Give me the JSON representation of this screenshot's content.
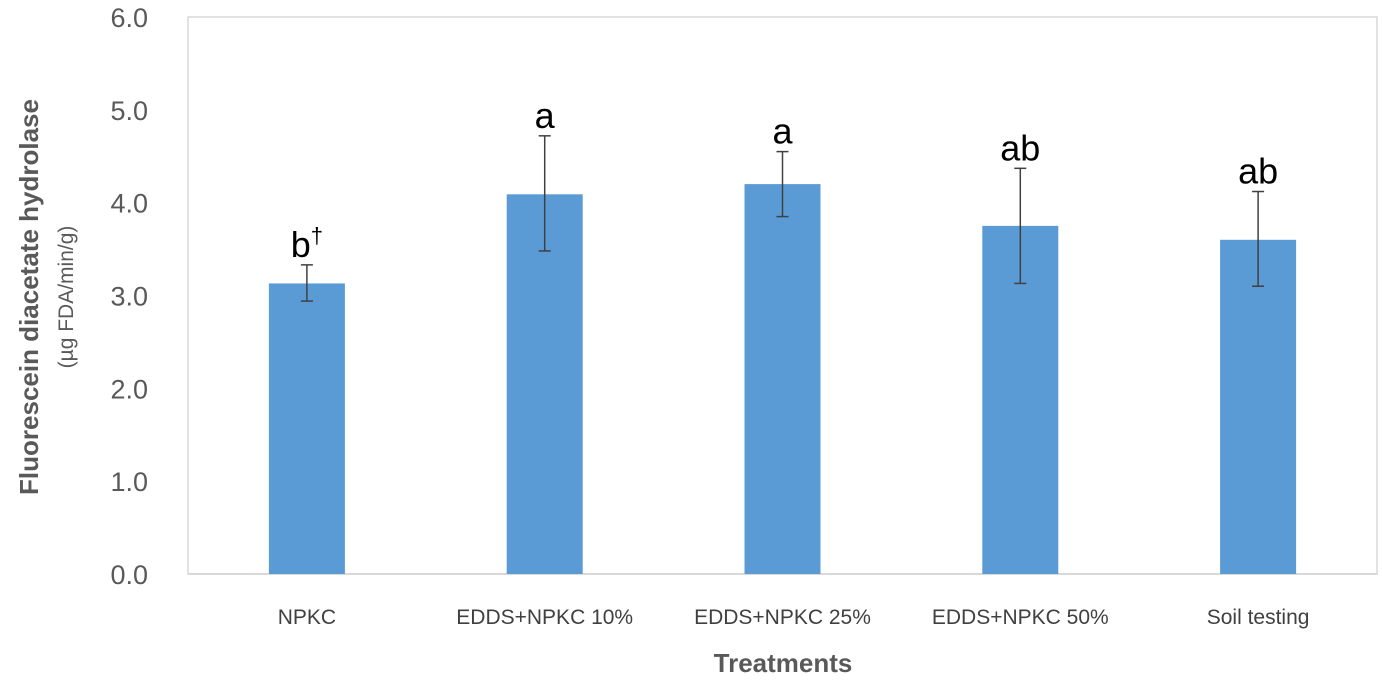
{
  "chart_data": {
    "type": "bar",
    "title": "",
    "xlabel": "Treatments",
    "ylabel": "Fluorescein diacetate hydrolase",
    "ylabel_sub": "(µg FDA/min/g)",
    "categories": [
      "NPKC",
      "EDDS+NPKC 10%",
      "EDDS+NPKC 25%",
      "EDDS+NPKC 50%",
      "Soil testing"
    ],
    "values": [
      3.13,
      4.09,
      4.2,
      3.75,
      3.6
    ],
    "error_low": [
      2.94,
      3.48,
      3.85,
      3.13,
      3.1
    ],
    "error_high": [
      3.33,
      4.72,
      4.55,
      4.37,
      4.12
    ],
    "significance_letters": [
      "b",
      "a",
      "a",
      "ab",
      "ab"
    ],
    "significance_superscripts": [
      "†",
      "",
      "",
      "",
      ""
    ],
    "ylim": [
      0,
      6
    ],
    "yticks": [
      "0.0",
      "1.0",
      "2.0",
      "3.0",
      "4.0",
      "5.0",
      "6.0"
    ],
    "grid": false,
    "bar_color": "#5B9BD5",
    "error_bar_color": "#404040",
    "axis_color": "#D9D9D9"
  }
}
